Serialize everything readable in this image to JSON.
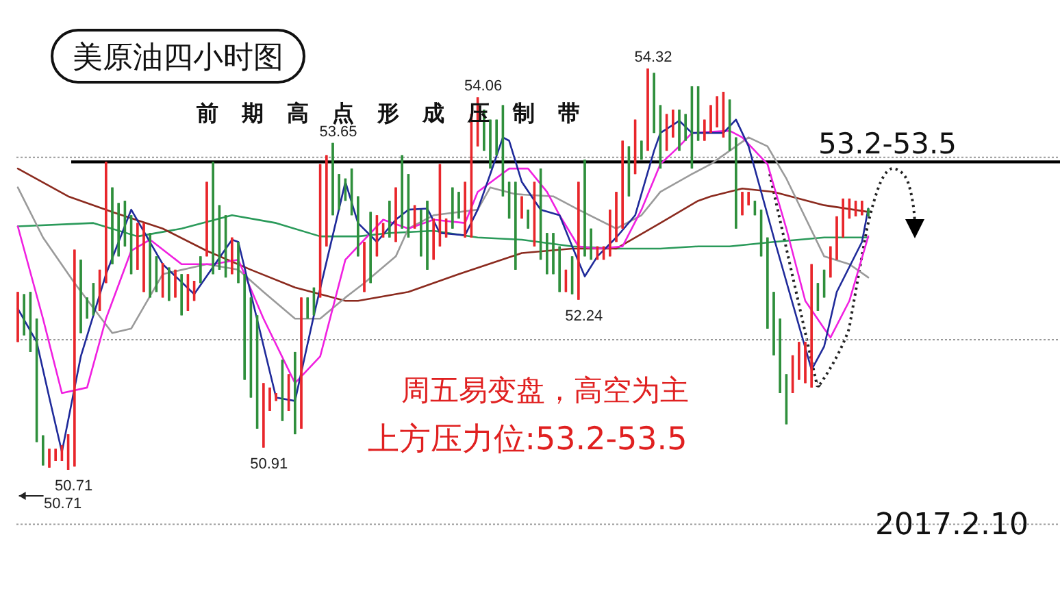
{
  "chart_data": {
    "type": "candlestick",
    "title": "美原油四小时图",
    "annotations": [
      "前期高点形成压制带",
      "周五易变盘，高空为主",
      "上方压力位:53.2-53.5",
      "2017.2.10",
      "53.2-53.5",
      {
        "text": "53.65",
        "y": 53.65
      },
      {
        "text": "54.06",
        "y": 54.06
      },
      {
        "text": "54.32",
        "y": 54.32
      },
      {
        "text": "52.24",
        "y": 52.24
      },
      {
        "text": "50.91",
        "y": 50.91
      },
      {
        "text": "50.71",
        "y": 50.71
      },
      {
        "text": "50.71",
        "y": 50.71
      }
    ],
    "categories": [
      null,
      null,
      null,
      null,
      null,
      null,
      null,
      null,
      null,
      null,
      null,
      null,
      null,
      null,
      null,
      null,
      null,
      null,
      null,
      null,
      null,
      null,
      null,
      null,
      null,
      null,
      null,
      null,
      null,
      null,
      null,
      null,
      null,
      null,
      null,
      null,
      null,
      null,
      null,
      null,
      null,
      null,
      null,
      null,
      null,
      null,
      null,
      null,
      null,
      null,
      null,
      null,
      null,
      null,
      null,
      null,
      null,
      null,
      null,
      null,
      null,
      null,
      null,
      null,
      null,
      null,
      null,
      null,
      null,
      null,
      null,
      null,
      null,
      null,
      null,
      null,
      null,
      null,
      null,
      null,
      null,
      null,
      null,
      null,
      null,
      null,
      null,
      null,
      null,
      null,
      null,
      null,
      null,
      null,
      null,
      null,
      null,
      null,
      null,
      null,
      null,
      null,
      null,
      null,
      null,
      null,
      null,
      null,
      null,
      null,
      null,
      null,
      null,
      null,
      null,
      null,
      null,
      null,
      null,
      null,
      null,
      null,
      null,
      null,
      null,
      null,
      null,
      null,
      null,
      null,
      null,
      null,
      null,
      null,
      null,
      null
    ],
    "ohlc": [
      [
        51.86,
        52.31,
        51.86,
        52.31
      ],
      [
        52.29,
        52.29,
        51.92,
        51.92
      ],
      [
        52.31,
        52.31,
        51.77,
        51.77
      ],
      [
        52.07,
        52.07,
        50.96,
        50.96
      ],
      [
        51.02,
        51.02,
        50.75,
        50.75
      ],
      [
        50.73,
        50.9,
        50.73,
        50.9
      ],
      [
        50.79,
        50.9,
        50.79,
        50.9
      ],
      [
        50.79,
        50.93,
        50.79,
        50.93
      ],
      [
        50.71,
        51.03,
        50.71,
        51.03
      ],
      [
        50.74,
        52.69,
        50.74,
        52.69
      ],
      [
        52.6,
        52.6,
        51.94,
        51.94
      ],
      [
        52.26,
        52.26,
        52.07,
        52.07
      ],
      [
        52.39,
        52.39,
        52.1,
        52.1
      ],
      [
        52.14,
        52.51,
        52.14,
        52.51
      ],
      [
        52.39,
        53.48,
        52.39,
        53.48
      ],
      [
        53.25,
        53.25,
        52.56,
        52.56
      ],
      [
        53.11,
        53.11,
        52.63,
        52.63
      ],
      [
        53.13,
        53.13,
        52.72,
        52.72
      ],
      [
        53.0,
        53.0,
        52.47,
        52.47
      ],
      [
        52.51,
        52.93,
        52.51,
        52.93
      ],
      [
        52.31,
        52.93,
        52.31,
        52.93
      ],
      [
        52.84,
        52.84,
        52.26,
        52.26
      ],
      [
        52.63,
        52.63,
        52.31,
        52.31
      ],
      [
        52.26,
        52.57,
        52.26,
        52.57
      ],
      [
        52.53,
        52.53,
        52.23,
        52.23
      ],
      [
        52.26,
        52.51,
        52.26,
        52.51
      ],
      [
        52.47,
        52.47,
        52.1,
        52.1
      ],
      [
        52.14,
        52.47,
        52.14,
        52.47
      ],
      [
        52.23,
        52.41,
        52.23,
        52.41
      ],
      [
        52.63,
        52.63,
        52.39,
        52.39
      ],
      [
        52.63,
        53.3,
        52.63,
        53.3
      ],
      [
        53.48,
        53.48,
        52.47,
        52.47
      ],
      [
        53.09,
        53.09,
        52.51,
        52.51
      ],
      [
        53.0,
        53.0,
        52.44,
        52.44
      ],
      [
        52.47,
        52.8,
        52.47,
        52.8
      ],
      [
        52.76,
        52.76,
        52.39,
        52.39
      ],
      [
        52.47,
        52.47,
        51.52,
        51.52
      ],
      [
        52.26,
        52.26,
        51.36,
        51.36
      ],
      [
        52.1,
        52.1,
        51.08,
        51.08
      ],
      [
        50.91,
        51.49,
        50.91,
        51.49
      ],
      [
        51.24,
        51.45,
        51.24,
        51.45
      ],
      [
        51.33,
        51.4,
        51.33,
        51.4
      ],
      [
        51.7,
        51.7,
        51.15,
        51.15
      ],
      [
        51.24,
        51.57,
        51.24,
        51.57
      ],
      [
        51.77,
        51.77,
        51.03,
        51.03
      ],
      [
        51.08,
        52.26,
        51.08,
        52.26
      ],
      [
        52.26,
        52.26,
        52.07,
        52.07
      ],
      [
        52.35,
        52.35,
        52.1,
        52.1
      ],
      [
        52.26,
        53.46,
        52.26,
        53.46
      ],
      [
        52.72,
        53.54,
        52.72,
        53.54
      ],
      [
        53.65,
        53.65,
        53.0,
        53.0
      ],
      [
        53.37,
        53.37,
        53.05,
        53.05
      ],
      [
        53.33,
        53.33,
        53.13,
        53.13
      ],
      [
        53.42,
        53.42,
        53.0,
        53.0
      ],
      [
        53.17,
        53.17,
        52.63,
        52.63
      ],
      [
        52.31,
        52.76,
        52.31,
        52.76
      ],
      [
        53.03,
        53.03,
        52.39,
        52.39
      ],
      [
        52.63,
        53.0,
        52.63,
        53.0
      ],
      [
        52.8,
        52.93,
        52.8,
        52.93
      ],
      [
        53.13,
        53.13,
        52.8,
        52.8
      ],
      [
        52.76,
        53.25,
        52.76,
        53.25
      ],
      [
        53.54,
        53.54,
        52.88,
        52.88
      ],
      [
        53.37,
        53.37,
        52.8,
        52.8
      ],
      [
        52.88,
        53.09,
        52.88,
        53.09
      ],
      [
        53.05,
        53.05,
        52.63,
        52.63
      ],
      [
        53.13,
        53.13,
        52.51,
        52.51
      ],
      [
        52.6,
        52.97,
        52.6,
        52.97
      ],
      [
        52.72,
        53.46,
        52.72,
        53.46
      ],
      [
        52.8,
        52.97,
        52.8,
        52.97
      ],
      [
        53.25,
        53.25,
        52.88,
        52.88
      ],
      [
        53.21,
        53.21,
        52.97,
        52.97
      ],
      [
        52.8,
        53.3,
        52.8,
        53.3
      ],
      [
        52.8,
        53.91,
        52.8,
        53.91
      ],
      [
        53.62,
        54.06,
        53.62,
        54.06
      ],
      [
        53.95,
        53.95,
        53.58,
        53.58
      ],
      [
        53.86,
        53.86,
        53.42,
        53.42
      ],
      [
        53.86,
        53.86,
        53.54,
        53.54
      ],
      [
        53.99,
        53.99,
        53.17,
        53.17
      ],
      [
        53.3,
        53.3,
        52.97,
        52.97
      ],
      [
        53.3,
        53.3,
        52.51,
        52.51
      ],
      [
        52.97,
        53.17,
        52.97,
        53.17
      ],
      [
        53.05,
        53.05,
        52.88,
        52.88
      ],
      [
        52.72,
        53.3,
        52.72,
        53.3
      ],
      [
        53.42,
        53.42,
        52.6,
        52.6
      ],
      [
        52.84,
        52.84,
        52.47,
        52.47
      ],
      [
        52.84,
        52.84,
        52.47,
        52.47
      ],
      [
        52.72,
        52.72,
        52.31,
        52.31
      ],
      [
        52.31,
        52.51,
        52.31,
        52.51
      ],
      [
        52.63,
        52.63,
        52.29,
        52.29
      ],
      [
        52.24,
        53.3,
        52.24,
        53.3
      ],
      [
        53.5,
        53.5,
        52.63,
        52.63
      ],
      [
        52.88,
        52.88,
        52.6,
        52.6
      ],
      [
        52.6,
        52.72,
        52.6,
        52.72
      ],
      [
        52.6,
        52.72,
        52.6,
        52.72
      ],
      [
        52.63,
        53.05,
        52.63,
        53.05
      ],
      [
        52.76,
        53.21,
        52.76,
        53.21
      ],
      [
        52.88,
        53.67,
        52.88,
        53.67
      ],
      [
        53.62,
        53.62,
        53.17,
        53.17
      ],
      [
        53.37,
        53.86,
        53.37,
        53.86
      ],
      [
        53.67,
        53.67,
        53.5,
        53.5
      ],
      [
        53.58,
        54.32,
        53.58,
        54.32
      ],
      [
        54.28,
        54.28,
        53.74,
        53.74
      ],
      [
        53.99,
        53.99,
        53.42,
        53.42
      ],
      [
        53.58,
        53.91,
        53.58,
        53.91
      ],
      [
        53.7,
        53.95,
        53.7,
        53.95
      ],
      [
        53.95,
        53.95,
        53.58,
        53.58
      ],
      [
        53.91,
        53.91,
        53.67,
        53.67
      ],
      [
        54.16,
        54.16,
        53.42,
        53.42
      ],
      [
        54.16,
        54.16,
        53.67,
        53.67
      ],
      [
        53.67,
        53.86,
        53.67,
        53.86
      ],
      [
        53.74,
        53.99,
        53.74,
        53.99
      ],
      [
        53.79,
        54.07,
        53.79,
        54.07
      ],
      [
        53.7,
        54.11,
        53.7,
        54.11
      ],
      [
        54.04,
        54.04,
        53.58,
        53.58
      ],
      [
        53.7,
        53.7,
        52.88,
        52.88
      ],
      [
        53.0,
        53.21,
        53.0,
        53.21
      ],
      [
        53.09,
        53.21,
        53.09,
        53.21
      ],
      [
        53.13,
        53.13,
        53.0,
        53.0
      ],
      [
        53.05,
        53.05,
        52.63,
        52.63
      ],
      [
        52.8,
        52.8,
        51.98,
        51.98
      ],
      [
        52.31,
        52.31,
        51.74,
        51.74
      ],
      [
        52.07,
        52.07,
        51.4,
        51.4
      ],
      [
        51.57,
        51.57,
        51.12,
        51.12
      ],
      [
        51.4,
        51.74,
        51.4,
        51.74
      ],
      [
        51.52,
        51.86,
        51.52,
        51.86
      ],
      [
        51.49,
        51.86,
        51.49,
        51.86
      ],
      [
        51.45,
        52.56,
        51.45,
        52.56
      ],
      [
        52.39,
        52.39,
        52.14,
        52.14
      ],
      [
        52.51,
        52.51,
        52.26,
        52.26
      ],
      [
        52.44,
        52.72,
        52.44,
        52.72
      ],
      [
        52.6,
        52.99,
        52.6,
        52.99
      ],
      [
        52.8,
        53.15,
        52.8,
        53.15
      ],
      [
        52.97,
        53.15,
        52.97,
        53.15
      ],
      [
        52.99,
        53.13,
        52.99,
        53.13
      ],
      [
        53.0,
        53.13,
        53.0,
        53.13
      ],
      [
        53.06,
        53.06,
        52.99,
        52.99
      ]
    ],
    "colors": [
      "#e8262b",
      "#2f8f3c",
      "#2f8f3c",
      "#2f8f3c",
      "#2f8f3c",
      "#e8262b",
      "#e8262b",
      "#e8262b",
      "#e8262b",
      "#e8262b",
      "#2f8f3c",
      "#2f8f3c",
      "#2f8f3c",
      "#e8262b",
      "#e8262b",
      "#2f8f3c",
      "#2f8f3c",
      "#2f8f3c",
      "#2f8f3c",
      "#e8262b",
      "#e8262b",
      "#2f8f3c",
      "#2f8f3c",
      "#e8262b",
      "#2f8f3c",
      "#e8262b",
      "#2f8f3c",
      "#e8262b",
      "#e8262b",
      "#2f8f3c",
      "#e8262b",
      "#2f8f3c",
      "#2f8f3c",
      "#2f8f3c",
      "#e8262b",
      "#2f8f3c",
      "#2f8f3c",
      "#2f8f3c",
      "#2f8f3c",
      "#e8262b",
      "#e8262b",
      "#e8262b",
      "#2f8f3c",
      "#e8262b",
      "#2f8f3c",
      "#e8262b",
      "#2f8f3c",
      "#2f8f3c",
      "#e8262b",
      "#e8262b",
      "#2f8f3c",
      "#2f8f3c",
      "#2f8f3c",
      "#2f8f3c",
      "#2f8f3c",
      "#e8262b",
      "#2f8f3c",
      "#e8262b",
      "#e8262b",
      "#2f8f3c",
      "#e8262b",
      "#2f8f3c",
      "#2f8f3c",
      "#e8262b",
      "#2f8f3c",
      "#2f8f3c",
      "#e8262b",
      "#e8262b",
      "#e8262b",
      "#2f8f3c",
      "#2f8f3c",
      "#e8262b",
      "#e8262b",
      "#e8262b",
      "#2f8f3c",
      "#2f8f3c",
      "#2f8f3c",
      "#2f8f3c",
      "#2f8f3c",
      "#2f8f3c",
      "#e8262b",
      "#2f8f3c",
      "#e8262b",
      "#2f8f3c",
      "#2f8f3c",
      "#2f8f3c",
      "#2f8f3c",
      "#e8262b",
      "#2f8f3c",
      "#e8262b",
      "#2f8f3c",
      "#2f8f3c",
      "#e8262b",
      "#e8262b",
      "#e8262b",
      "#e8262b",
      "#e8262b",
      "#2f8f3c",
      "#e8262b",
      "#2f8f3c",
      "#e8262b",
      "#2f8f3c",
      "#2f8f3c",
      "#e8262b",
      "#e8262b",
      "#2f8f3c",
      "#2f8f3c",
      "#2f8f3c",
      "#2f8f3c",
      "#e8262b",
      "#e8262b",
      "#e8262b",
      "#e8262b",
      "#2f8f3c",
      "#2f8f3c",
      "#e8262b",
      "#e8262b",
      "#2f8f3c",
      "#2f8f3c",
      "#2f8f3c",
      "#2f8f3c",
      "#2f8f3c",
      "#2f8f3c",
      "#e8262b",
      "#e8262b",
      "#e8262b",
      "#e8262b",
      "#2f8f3c",
      "#2f8f3c",
      "#e8262b",
      "#e8262b",
      "#e8262b",
      "#e8262b",
      "#e8262b",
      "#e8262b",
      "#2f8f3c"
    ],
    "series": [
      {
        "type": "line",
        "color": "#2a9a5a",
        "values": [
          52.9,
          null,
          null,
          null,
          null,
          null,
          null,
          null,
          null,
          null,
          null,
          null,
          52.93,
          null,
          null,
          null,
          null,
          null,
          null,
          52.81,
          null,
          null,
          null,
          null,
          null,
          null,
          52.88,
          null,
          null,
          null,
          null,
          null,
          null,
          null,
          53.0,
          null,
          null,
          null,
          null,
          null,
          null,
          52.93,
          null,
          null,
          null,
          null,
          null,
          null,
          52.81,
          null,
          null,
          null,
          null,
          null,
          52.81,
          null,
          null,
          null,
          null,
          52.84,
          null,
          null,
          null,
          null,
          null,
          null,
          52.86,
          null,
          null,
          null,
          null,
          null,
          null,
          52.8,
          null,
          null,
          null,
          null,
          null,
          null,
          52.78,
          null,
          null,
          null,
          null,
          null,
          null,
          null,
          52.72,
          null,
          null,
          null,
          null,
          null,
          null,
          52.7,
          null,
          null,
          null,
          null,
          null,
          null,
          52.7,
          null,
          null,
          null,
          null,
          null,
          52.72,
          null,
          null,
          null,
          null,
          52.72,
          null,
          null,
          null,
          null,
          null,
          null,
          52.76,
          null,
          null,
          null,
          null,
          null,
          null,
          null,
          52.8,
          null,
          null,
          null,
          null,
          null,
          null,
          52.8
        ]
      },
      {
        "type": "line",
        "color": "#8b2a1e",
        "values": [
          53.42,
          null,
          null,
          null,
          null,
          null,
          null,
          null,
          53.17,
          null,
          null,
          null,
          null,
          null,
          null,
          53.03,
          null,
          null,
          null,
          null,
          null,
          null,
          null,
          52.88,
          null,
          null,
          null,
          null,
          null,
          null,
          52.68,
          null,
          null,
          null,
          null,
          null,
          null,
          52.51,
          null,
          null,
          null,
          null,
          null,
          null,
          52.35,
          null,
          null,
          null,
          null,
          null,
          null,
          null,
          52.23,
          null,
          52.23,
          null,
          null,
          null,
          null,
          null,
          null,
          null,
          52.31,
          null,
          null,
          null,
          null,
          null,
          null,
          null,
          52.47,
          null,
          null,
          null,
          null,
          null,
          null,
          null,
          null,
          null,
          52.66,
          null,
          null,
          null,
          null,
          null,
          null,
          null,
          52.7,
          null,
          null,
          null,
          null,
          null,
          null,
          52.7,
          null,
          null,
          null,
          null,
          null,
          null,
          52.93,
          null,
          null,
          null,
          null,
          null,
          53.13,
          null,
          53.17,
          null,
          null,
          null,
          null,
          53.24,
          null,
          null,
          null,
          null,
          53.21,
          null,
          null,
          null,
          null,
          null,
          null,
          null,
          53.09,
          null,
          null,
          null,
          null,
          null,
          null,
          53.03
        ]
      },
      {
        "type": "line",
        "color": "#9a9a9a",
        "values": [
          53.25,
          null,
          null,
          null,
          52.8,
          null,
          null,
          null,
          null,
          52.39,
          null,
          null,
          null,
          null,
          null,
          51.94,
          null,
          null,
          51.98,
          null,
          null,
          null,
          null,
          52.47,
          null,
          null,
          null,
          null,
          null,
          null,
          52.56,
          null,
          null,
          null,
          null,
          52.51,
          null,
          null,
          null,
          52.31,
          null,
          null,
          null,
          null,
          52.07,
          null,
          null,
          null,
          52.07,
          null,
          null,
          null,
          52.26,
          null,
          null,
          52.39,
          null,
          null,
          null,
          null,
          52.63,
          null,
          52.88,
          null,
          null,
          null,
          53.0,
          null,
          null,
          null,
          null,
          null,
          null,
          53.05,
          null,
          53.25,
          null,
          null,
          null,
          53.19,
          null,
          null,
          null,
          null,
          null,
          53.17,
          null,
          null,
          null,
          53.05,
          null,
          null,
          null,
          null,
          null,
          52.88,
          null,
          null,
          null,
          53.0,
          null,
          null,
          53.21,
          null,
          null,
          null,
          null,
          53.37,
          null,
          null,
          53.46,
          null,
          null,
          null,
          null,
          null,
          53.7,
          null,
          null,
          53.62,
          null,
          null,
          53.33,
          null,
          null,
          null,
          null,
          null,
          52.63,
          null,
          null,
          null,
          52.56,
          null,
          null,
          52.44
        ]
      },
      {
        "type": "line",
        "color": "#f020e0",
        "values": [
          52.9,
          null,
          null,
          null,
          52.07,
          null,
          null,
          51.4,
          null,
          null,
          null,
          51.45,
          null,
          null,
          52.07,
          null,
          null,
          null,
          52.68,
          null,
          null,
          52.78,
          null,
          null,
          null,
          null,
          52.56,
          null,
          null,
          null,
          null,
          52.56,
          null,
          null,
          null,
          52.6,
          null,
          null,
          null,
          52.07,
          null,
          null,
          null,
          null,
          51.49,
          null,
          null,
          null,
          51.73,
          null,
          null,
          null,
          52.6,
          null,
          null,
          null,
          null,
          null,
          52.96,
          null,
          null,
          null,
          52.88,
          null,
          null,
          null,
          52.96,
          null,
          null,
          null,
          null,
          52.93,
          null,
          53.21,
          null,
          null,
          null,
          null,
          53.42,
          null,
          null,
          53.42,
          null,
          null,
          53.21,
          null,
          53.0,
          null,
          null,
          52.72,
          null,
          null,
          52.7,
          null,
          null,
          null,
          52.72,
          null,
          null,
          53.05,
          null,
          null,
          53.46,
          null,
          null,
          53.62,
          null,
          53.74,
          null,
          null,
          null,
          null,
          null,
          53.76,
          null,
          53.7,
          null,
          null,
          null,
          53.46,
          null,
          null,
          52.88,
          null,
          null,
          52.23,
          null,
          null,
          51.98,
          51.9,
          null,
          null,
          52.23,
          null,
          null,
          52.81
        ]
      },
      {
        "type": "line",
        "color": "#1f2a9a",
        "values": [
          52.16,
          null,
          null,
          51.86,
          null,
          51.36,
          null,
          50.87,
          null,
          null,
          51.73,
          null,
          null,
          null,
          52.47,
          null,
          null,
          null,
          53.05,
          null,
          null,
          null,
          null,
          52.56,
          null,
          null,
          null,
          null,
          52.29,
          null,
          null,
          null,
          null,
          null,
          52.78,
          52.76,
          null,
          null,
          null,
          null,
          null,
          51.36,
          null,
          null,
          51.33,
          null,
          null,
          52.1,
          null,
          null,
          null,
          null,
          53.3,
          null,
          52.93,
          null,
          null,
          52.76,
          null,
          null,
          52.96,
          null,
          53.05,
          null,
          null,
          53.06,
          null,
          52.84,
          null,
          null,
          null,
          52.82,
          null,
          53.05,
          null,
          53.37,
          null,
          53.7,
          53.67,
          null,
          53.3,
          null,
          null,
          53.05,
          null,
          null,
          53.0,
          null,
          52.72,
          null,
          52.45,
          null,
          52.63,
          null,
          null,
          52.8,
          null,
          null,
          53.0,
          null,
          null,
          53.58,
          53.74,
          null,
          null,
          53.85,
          null,
          53.74,
          null,
          null,
          null,
          null,
          53.74,
          null,
          53.86,
          null,
          53.62,
          null,
          null,
          null,
          52.8,
          null,
          null,
          null,
          null,
          null,
          51.61,
          null,
          51.82,
          null,
          52.31,
          null,
          null,
          null,
          52.76,
          53.06
        ]
      }
    ],
    "yticks": [
      {
        "value": 50.22,
        "label": null
      },
      {
        "value": 51.88,
        "label": null
      },
      {
        "value": 53.52,
        "label": null
      }
    ],
    "grid": "y",
    "ref_lines": [
      {
        "axis": "y",
        "value": 53.48,
        "color": "#000000"
      }
    ]
  }
}
